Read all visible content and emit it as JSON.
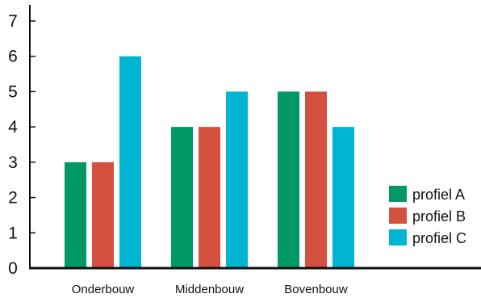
{
  "chart_data": {
    "type": "bar",
    "title": "",
    "xlabel": "",
    "ylabel": "",
    "categories": [
      "Onderbouw",
      "Middenbouw",
      "Bovenbouw"
    ],
    "series": [
      {
        "name": "profiel A",
        "values": [
          3,
          4,
          5
        ],
        "color": "#009966"
      },
      {
        "name": "profiel B",
        "values": [
          3,
          4,
          5
        ],
        "color": "#d4503f"
      },
      {
        "name": "profiel C",
        "values": [
          6,
          5,
          4
        ],
        "color": "#00b5d1"
      }
    ],
    "ylim": [
      0,
      7
    ],
    "yticks": [
      "0",
      "1",
      "2",
      "3",
      "4",
      "5",
      "6",
      "7"
    ],
    "grid": false,
    "legend_position": "right"
  }
}
